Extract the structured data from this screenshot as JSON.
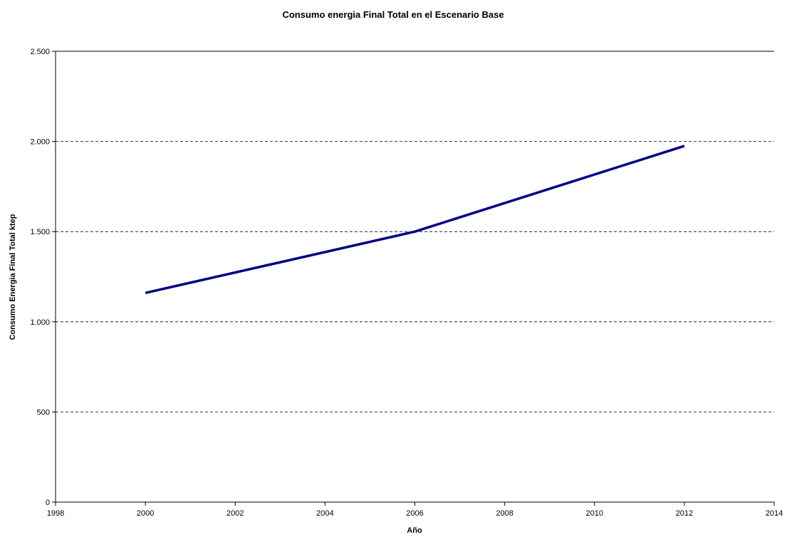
{
  "chart_data": {
    "type": "line",
    "title": "Consumo energia Final Total en el Escenario Base",
    "xlabel": "Año",
    "ylabel": "Consumo Energia Final Total ktep",
    "xlim": [
      1998,
      2014
    ],
    "ylim": [
      0,
      2500
    ],
    "x_ticks": [
      1998,
      2000,
      2002,
      2004,
      2006,
      2008,
      2010,
      2012,
      2014
    ],
    "x_tick_labels": [
      "1998",
      "2000",
      "2002",
      "2004",
      "2006",
      "2008",
      "2010",
      "2012",
      "2014"
    ],
    "y_ticks": [
      0,
      500,
      1000,
      1500,
      2000,
      2500
    ],
    "y_tick_labels": [
      "0",
      "500",
      "1.000",
      "1.500",
      "2.000",
      "2.500"
    ],
    "grid": "horizontal dashed",
    "legend": "none",
    "line_color": "#000080",
    "series": [
      {
        "x": [
          2000,
          2006,
          2012
        ],
        "values": [
          1160,
          1500,
          1975
        ]
      }
    ]
  }
}
